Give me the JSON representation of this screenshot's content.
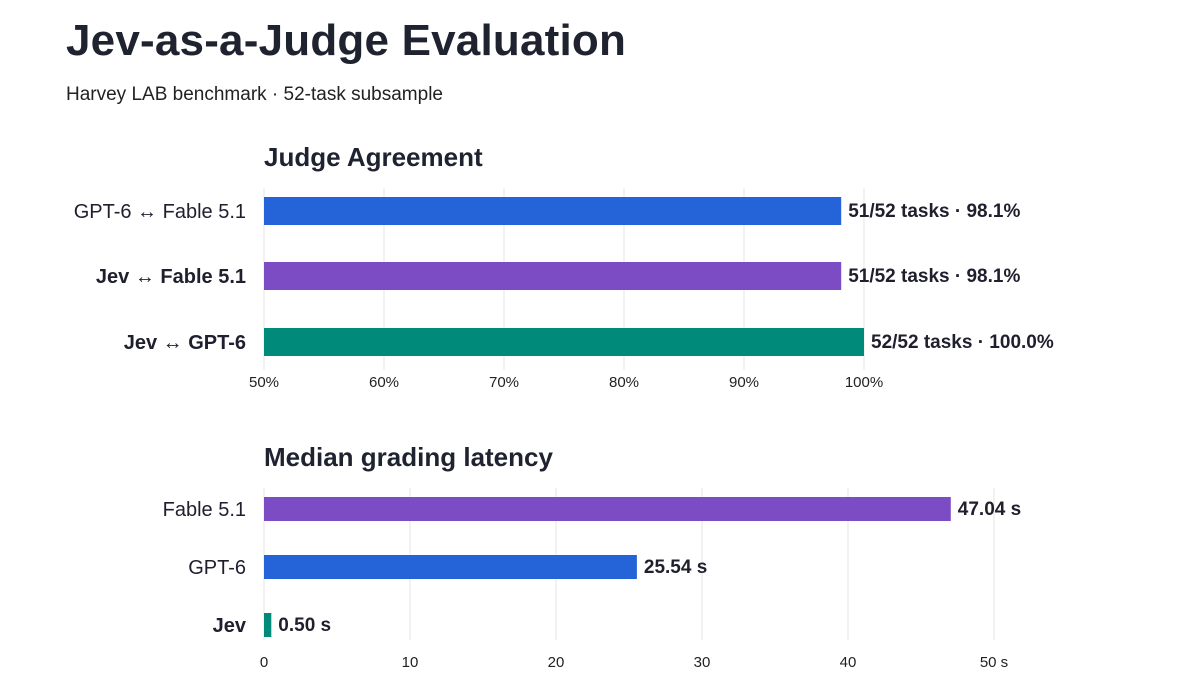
{
  "header": {
    "title": "Jev-as-a-Judge Evaluation",
    "subtitle": "Harvey LAB benchmark · 52-task subsample"
  },
  "chart_data": [
    {
      "id": "agreement",
      "type": "bar",
      "orientation": "horizontal",
      "title": "Judge Agreement",
      "xlim": [
        50,
        100
      ],
      "ticks": [
        50,
        60,
        70,
        80,
        90,
        100
      ],
      "tick_labels": [
        "50%",
        "60%",
        "70%",
        "80%",
        "90%",
        "100%"
      ],
      "grid": true,
      "categories": [
        {
          "label": "GPT-6 ↔ Fable 5.1",
          "bold": false
        },
        {
          "label": "Jev ↔ Fable 5.1",
          "bold": true
        },
        {
          "label": "Jev ↔ GPT-6",
          "bold": true
        }
      ],
      "values": [
        98.1,
        98.1,
        100.0
      ],
      "value_labels": [
        "51/52 tasks · 98.1%",
        "51/52 tasks · 98.1%",
        "52/52 tasks · 100.0%"
      ],
      "colors": [
        "#2563d9",
        "#7b4cc4",
        "#008a7a"
      ]
    },
    {
      "id": "latency",
      "type": "bar",
      "orientation": "horizontal",
      "title": "Median grading latency",
      "xlim": [
        0,
        50
      ],
      "ticks": [
        0,
        10,
        20,
        30,
        40,
        50
      ],
      "tick_labels": [
        "0",
        "10",
        "20",
        "30",
        "40",
        "50 s"
      ],
      "grid": true,
      "categories": [
        {
          "label": "Fable 5.1",
          "bold": false
        },
        {
          "label": "GPT-6",
          "bold": false
        },
        {
          "label": "Jev",
          "bold": true
        }
      ],
      "values": [
        47.04,
        25.54,
        0.5
      ],
      "value_labels": [
        "47.04 s",
        "25.54 s",
        "0.50 s"
      ],
      "colors": [
        "#7b4cc4",
        "#2563d9",
        "#008a7a"
      ]
    }
  ]
}
